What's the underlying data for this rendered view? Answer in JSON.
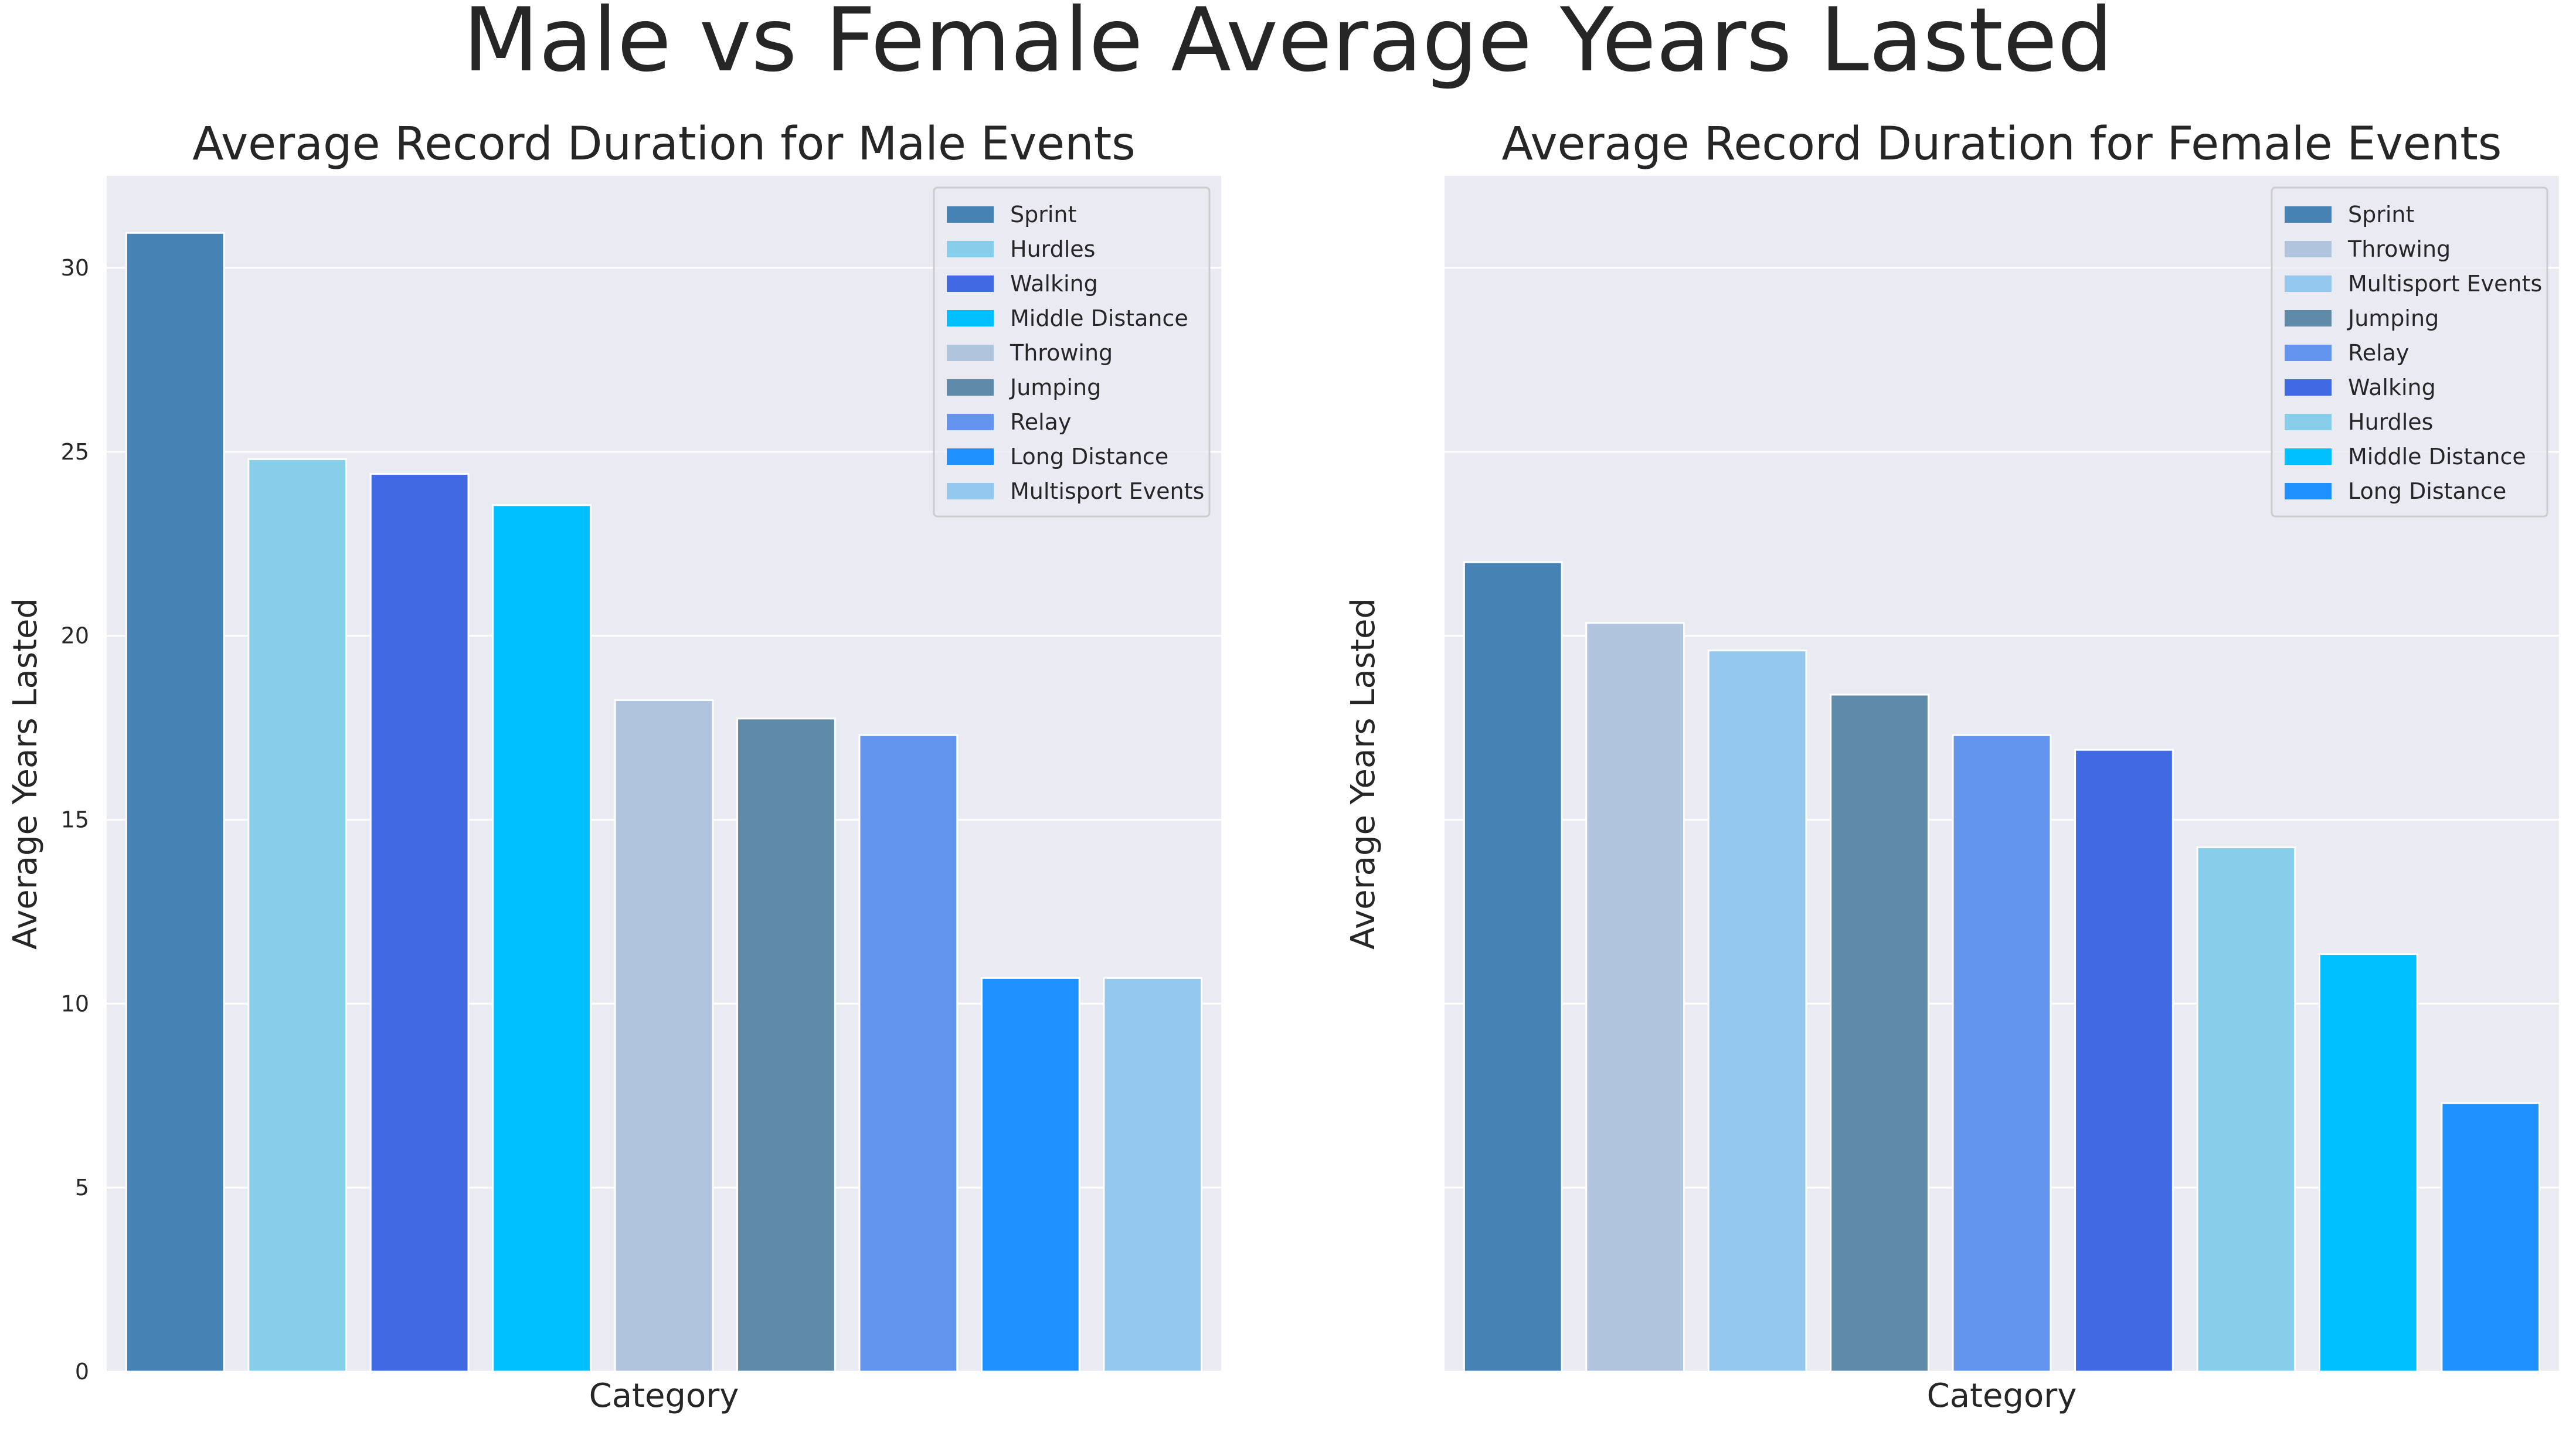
{
  "figure": {
    "suptitle": "Male vs Female Average Years Lasted"
  },
  "chart_data": [
    {
      "type": "bar",
      "title": "Average Record Duration for Male Events",
      "xlabel": "Category",
      "ylabel": "Average Years Lasted",
      "ylim": [
        0,
        32.5
      ],
      "yticks": [
        0,
        5,
        10,
        15,
        20,
        25,
        30
      ],
      "grid": true,
      "legend_position": "top-right",
      "categories": [
        "Sprint",
        "Hurdles",
        "Walking",
        "Middle Distance",
        "Throwing",
        "Jumping",
        "Relay",
        "Long Distance",
        "Multisport Events"
      ],
      "values": [
        30.95,
        24.8,
        24.4,
        23.55,
        18.25,
        17.75,
        17.3,
        10.7,
        10.7
      ],
      "colors": [
        "#4682b4",
        "#87ceeb",
        "#4169e1",
        "#00bfff",
        "#b0c4de",
        "#5f8aa8",
        "#6495ed",
        "#1e90ff",
        "#94c8ec"
      ]
    },
    {
      "type": "bar",
      "title": "Average Record Duration for Female Events",
      "xlabel": "Category",
      "ylabel": "Average Years Lasted",
      "ylim": [
        0,
        32.5
      ],
      "yticks": [
        0,
        5,
        10,
        15,
        20,
        25,
        30
      ],
      "show_tick_labels": false,
      "grid": true,
      "legend_position": "top-right",
      "categories": [
        "Sprint",
        "Throwing",
        "Multisport Events",
        "Jumping",
        "Relay",
        "Walking",
        "Hurdles",
        "Middle Distance",
        "Long Distance"
      ],
      "values": [
        22.0,
        20.35,
        19.6,
        18.4,
        17.3,
        16.9,
        14.25,
        11.35,
        7.3
      ],
      "colors": [
        "#4682b4",
        "#b0c4de",
        "#94c8ec",
        "#5f8aa8",
        "#6495ed",
        "#4169e1",
        "#87ceeb",
        "#00bfff",
        "#1e90ff"
      ]
    }
  ]
}
